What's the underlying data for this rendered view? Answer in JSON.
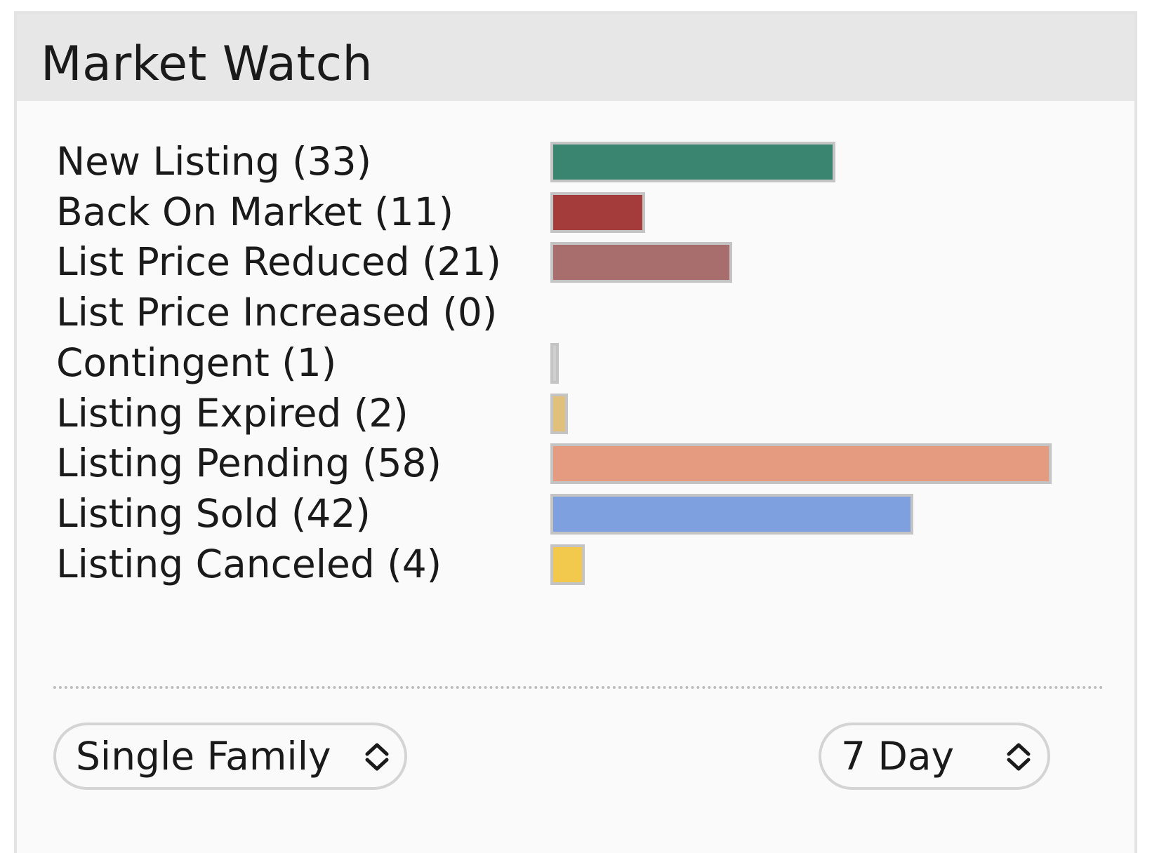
{
  "widget": {
    "title": "Market Watch"
  },
  "chart_data": {
    "type": "bar",
    "orientation": "horizontal",
    "categories": [
      "New Listing",
      "Back On Market",
      "List Price Reduced",
      "List Price Increased",
      "Contingent",
      "Listing Expired",
      "Listing Pending",
      "Listing Sold",
      "Listing Canceled"
    ],
    "labels": [
      "New Listing (33)",
      "Back On Market (11)",
      "List Price Reduced (21)",
      "List Price Increased (0)",
      "Contingent (1)",
      "Listing Expired (2)",
      "Listing Pending (58)",
      "Listing Sold (42)",
      "Listing Canceled (4)"
    ],
    "values": [
      33,
      11,
      21,
      0,
      1,
      2,
      58,
      42,
      4
    ],
    "colors": [
      "#3a8570",
      "#a33c3a",
      "#a86e6e",
      "#cccccc",
      "#cfcfcf",
      "#e0c07a",
      "#e59b80",
      "#7fa0de",
      "#f3c94d"
    ],
    "title": "",
    "xlabel": "",
    "ylabel": "",
    "xlim": [
      0,
      58
    ],
    "grid": false,
    "legend": "none"
  },
  "filters": {
    "property_type": "Single Family",
    "period": "7 Day"
  }
}
